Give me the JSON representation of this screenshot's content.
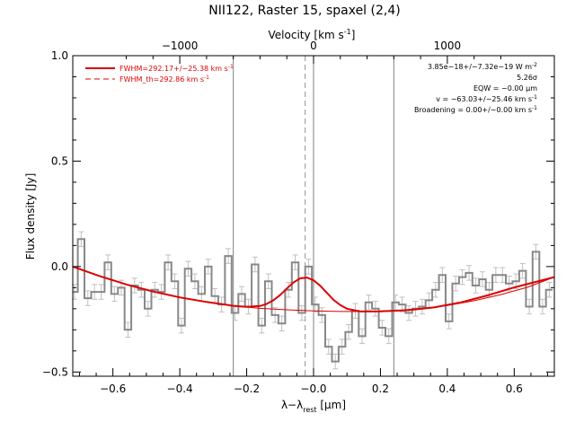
{
  "chart_data": {
    "type": "line",
    "title": "NII122, Raster 15, spaxel (2,4)",
    "xlabel_main": "λ−λ",
    "xlabel_sub": "rest",
    "xlabel_unit": " [μm]",
    "ylabel": "Flux density [Jy]",
    "top_axis_label_main": "Velocity [km s",
    "top_axis_label_sup": "-1",
    "top_axis_label_end": "]",
    "xlim": [
      -0.72,
      0.72
    ],
    "ylim": [
      -0.52,
      1.0
    ],
    "x_ticks": [
      -0.6,
      -0.4,
      -0.2,
      0.0,
      0.2,
      0.4,
      0.6
    ],
    "x_tick_labels": [
      "−0.6",
      "−0.4",
      "−0.2",
      "−0.0",
      "0.2",
      "0.4",
      "0.6"
    ],
    "y_ticks": [
      -0.5,
      0.0,
      0.5,
      1.0
    ],
    "y_tick_labels": [
      "−0.5",
      "0.0",
      "0.5",
      "1.0"
    ],
    "top_ticks": [
      -0.4,
      0.0,
      0.4
    ],
    "top_tick_labels": [
      "−1000",
      "0",
      "1000"
    ],
    "vertical_lines": [
      -0.24,
      0.0,
      0.24
    ],
    "dashed_line": -0.025,
    "legend": [
      {
        "name": "FWHM=292.17+/−25.38 km s",
        "sup": "-1",
        "style": "solid",
        "color": "#dd0000"
      },
      {
        "name": "FWHM_th=292.86 km s",
        "sup": "-1",
        "style": "dashed",
        "color": "#dd0000"
      }
    ],
    "annotations": [
      {
        "text": "3.85e−18+/−7.32e−19 W m",
        "sup": "-2"
      },
      {
        "text": "5.26σ",
        "sup": ""
      },
      {
        "text": "EQW = −0.00 μm",
        "sup": ""
      },
      {
        "text": "v = −63.03+/−25.46 km s",
        "sup": "-1"
      },
      {
        "text": "Broadening = 0.00+/−0.00 km s",
        "sup": "-1"
      }
    ],
    "series": [
      {
        "style": "steps",
        "color": "#888888",
        "x": [
          -0.715,
          -0.695,
          -0.675,
          -0.655,
          -0.635,
          -0.615,
          -0.595,
          -0.575,
          -0.555,
          -0.535,
          -0.515,
          -0.495,
          -0.475,
          -0.455,
          -0.435,
          -0.415,
          -0.395,
          -0.375,
          -0.355,
          -0.335,
          -0.315,
          -0.295,
          -0.275,
          -0.255,
          -0.235,
          -0.215,
          -0.195,
          -0.175,
          -0.155,
          -0.135,
          -0.115,
          -0.095,
          -0.075,
          -0.055,
          -0.035,
          -0.015,
          0.005,
          0.025,
          0.045,
          0.065,
          0.085,
          0.105,
          0.125,
          0.145,
          0.165,
          0.185,
          0.205,
          0.225,
          0.245,
          0.265,
          0.285,
          0.305,
          0.325,
          0.345,
          0.365,
          0.385,
          0.405,
          0.425,
          0.445,
          0.465,
          0.485,
          0.505,
          0.525,
          0.545,
          0.565,
          0.585,
          0.605,
          0.625,
          0.645,
          0.665,
          0.685,
          0.705
        ],
        "y": [
          -0.12,
          0.13,
          -0.15,
          -0.12,
          -0.12,
          0.02,
          -0.13,
          -0.1,
          -0.3,
          -0.09,
          -0.11,
          -0.2,
          -0.11,
          -0.12,
          0.02,
          -0.07,
          -0.28,
          -0.01,
          -0.07,
          -0.13,
          0.0,
          -0.14,
          -0.18,
          0.05,
          -0.22,
          -0.13,
          -0.19,
          0.01,
          -0.28,
          -0.07,
          -0.23,
          -0.27,
          -0.11,
          0.02,
          -0.22,
          0.0,
          -0.18,
          -0.23,
          -0.38,
          -0.45,
          -0.38,
          -0.31,
          -0.21,
          -0.33,
          -0.17,
          -0.2,
          -0.29,
          -0.33,
          -0.17,
          -0.18,
          -0.22,
          -0.2,
          -0.19,
          -0.16,
          -0.11,
          -0.04,
          -0.26,
          -0.08,
          -0.05,
          -0.03,
          -0.09,
          -0.06,
          -0.11,
          -0.04,
          -0.04,
          -0.08,
          -0.07,
          -0.02,
          -0.19,
          0.07,
          -0.19,
          -0.11
        ],
        "errors": 0.035
      },
      {
        "style": "line",
        "color": "#dd0000",
        "width": 2,
        "x": [
          -0.72,
          -0.64,
          -0.56,
          -0.48,
          -0.4,
          -0.32,
          -0.24,
          -0.2,
          -0.16,
          -0.14,
          -0.12,
          -0.1,
          -0.08,
          -0.06,
          -0.04,
          -0.02,
          0.0,
          0.02,
          0.04,
          0.06,
          0.08,
          0.1,
          0.14,
          0.2,
          0.28,
          0.36,
          0.44,
          0.52,
          0.6,
          0.72
        ],
        "y": [
          0.0,
          -0.045,
          -0.085,
          -0.118,
          -0.146,
          -0.168,
          -0.186,
          -0.191,
          -0.187,
          -0.177,
          -0.16,
          -0.135,
          -0.104,
          -0.075,
          -0.056,
          -0.052,
          -0.065,
          -0.091,
          -0.125,
          -0.158,
          -0.183,
          -0.2,
          -0.213,
          -0.212,
          -0.207,
          -0.194,
          -0.17,
          -0.137,
          -0.099,
          -0.05
        ]
      },
      {
        "style": "line",
        "color": "#dd0000",
        "width": 1,
        "x": [
          -0.72,
          -0.64,
          -0.56,
          -0.48,
          -0.4,
          -0.32,
          -0.24,
          -0.16,
          -0.08,
          0.0,
          0.08,
          0.16,
          0.24,
          0.32,
          0.4,
          0.48,
          0.56,
          0.64,
          0.72
        ],
        "y": [
          0.0,
          -0.045,
          -0.085,
          -0.118,
          -0.146,
          -0.168,
          -0.186,
          -0.198,
          -0.205,
          -0.21,
          -0.213,
          -0.213,
          -0.209,
          -0.2,
          -0.185,
          -0.162,
          -0.133,
          -0.098,
          -0.05
        ]
      }
    ]
  }
}
